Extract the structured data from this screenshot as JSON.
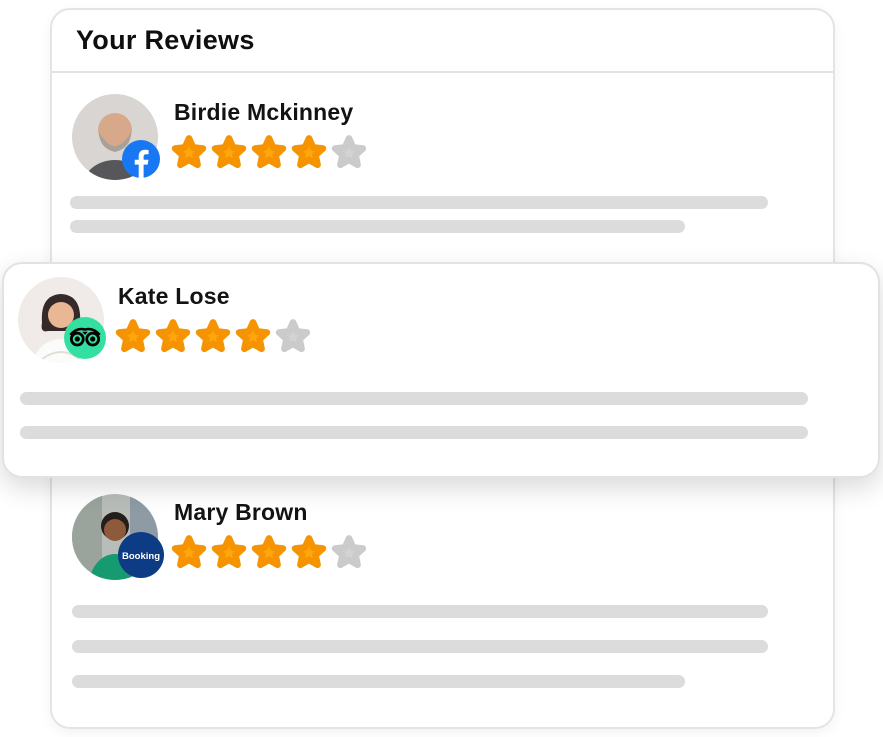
{
  "header": {
    "title": "Your Reviews"
  },
  "reviews": [
    {
      "name": "Birdie Mckinney",
      "platform": "Facebook",
      "icon": "facebook-icon",
      "rating": 4,
      "max_rating": 5,
      "badge_label": "",
      "text_line_widths": [
        698,
        615
      ],
      "highlighted": false
    },
    {
      "name": "Kate Lose",
      "platform": "Tripadvisor",
      "icon": "tripadvisor-icon",
      "rating": 4,
      "max_rating": 5,
      "badge_label": "",
      "text_line_widths": [
        788,
        788
      ],
      "highlighted": true
    },
    {
      "name": "Mary Brown",
      "platform": "Booking.com",
      "icon": "booking-icon",
      "rating": 4,
      "max_rating": 5,
      "badge_label": "Booking",
      "text_line_widths": [
        696,
        696,
        613
      ],
      "highlighted": false
    }
  ],
  "colors": {
    "star_filled": "#FFA60F",
    "star_filled_edge": "#F59300",
    "star_empty": "#D3D3D3",
    "star_empty_edge": "#CBCBCB",
    "facebook_blue": "#1877F2",
    "tripadvisor_green": "#34E0A1",
    "booking_blue": "#0D3C85",
    "placeholder_gray": "#DCDCDC"
  }
}
